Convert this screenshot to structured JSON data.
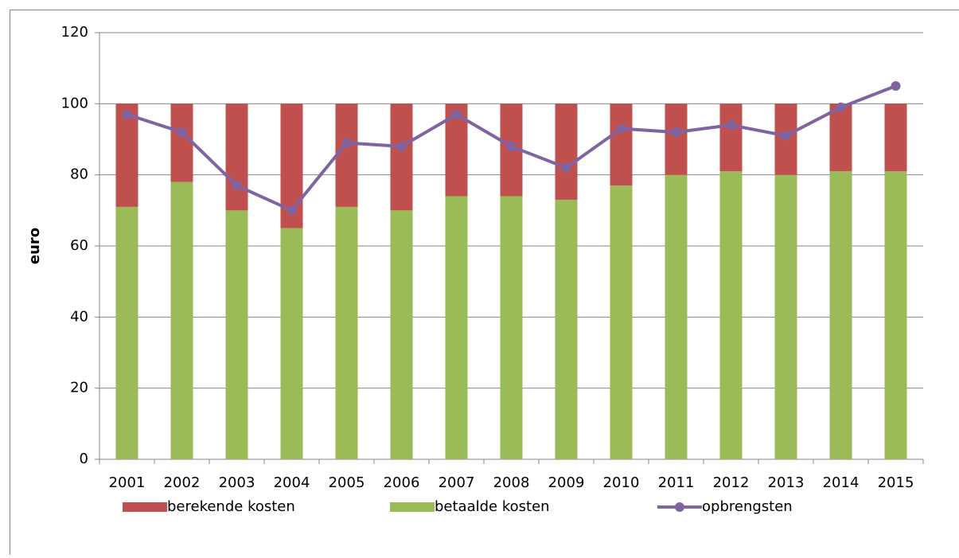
{
  "chart_data": {
    "type": "bar",
    "stacked": true,
    "y_label": "euro",
    "categories": [
      "2001",
      "2002",
      "2003",
      "2004",
      "2005",
      "2006",
      "2007",
      "2008",
      "2009",
      "2010",
      "2011",
      "2012",
      "2013",
      "2014",
      "2015"
    ],
    "series": [
      {
        "name": "berekende kosten",
        "type": "bar",
        "color": "#c0504d",
        "values": [
          29,
          22,
          30,
          35,
          29,
          30,
          26,
          26,
          27,
          23,
          20,
          19,
          20,
          19,
          19
        ]
      },
      {
        "name": "betaalde kosten",
        "type": "bar",
        "color": "#9bbb59",
        "values": [
          71,
          78,
          70,
          65,
          71,
          70,
          74,
          74,
          73,
          77,
          80,
          81,
          80,
          81,
          81
        ]
      },
      {
        "name": "opbrengsten",
        "type": "line",
        "color": "#8064a2",
        "values": [
          97,
          92,
          77,
          70,
          89,
          88,
          97,
          88,
          82,
          93,
          92,
          94,
          91,
          99,
          105
        ]
      }
    ],
    "ylim": [
      0,
      120
    ],
    "yticks": [
      0,
      20,
      40,
      60,
      80,
      100,
      120
    ],
    "grid": true,
    "legend": "bottom"
  }
}
